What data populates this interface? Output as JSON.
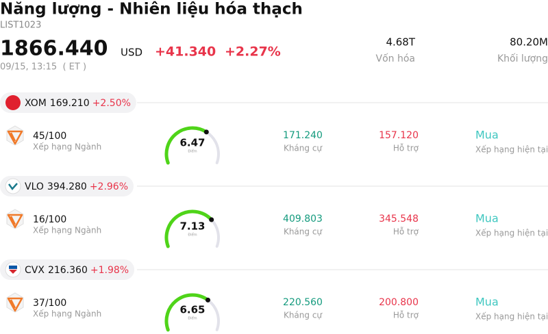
{
  "header": {
    "title": "Năng lượng - Nhiên liệu hóa thạch",
    "code": "LIST1023",
    "price": "1866.440",
    "currency": "USD",
    "change": "+41.340",
    "change_pct": "+2.27%",
    "time": "09/15, 13:15  ( ET )",
    "market_cap": "4.68T",
    "market_cap_label": "Vốn hóa",
    "volume": "80.20M",
    "volume_label": "Khối lượng"
  },
  "stocks": [
    {
      "ticker": "XOM",
      "price": "169.210",
      "change": "+2.50%",
      "rank": "45/100",
      "rank_label": "Xếp hạng Ngành",
      "score": 6.47,
      "score_label": "Điểm",
      "resistance": "171.240",
      "resistance_label": "Kháng cự",
      "support": "157.120",
      "support_label": "Hỗ trợ",
      "rating": "Mua",
      "rating_label": "Xếp hạng hiện tại"
    },
    {
      "ticker": "VLO",
      "price": "394.280",
      "change": "+2.96%",
      "rank": "16/100",
      "rank_label": "Xếp hạng Ngành",
      "score": 7.13,
      "score_label": "Điểm",
      "resistance": "409.803",
      "resistance_label": "Kháng cự",
      "support": "345.548",
      "support_label": "Hỗ trợ",
      "rating": "Mua",
      "rating_label": "Xếp hạng hiện tại"
    },
    {
      "ticker": "CVX",
      "price": "216.360",
      "change": "+1.98%",
      "rank": "37/100",
      "rank_label": "Xếp hạng Ngành",
      "score": 6.65,
      "score_label": "Điểm",
      "resistance": "220.560",
      "resistance_label": "Kháng cự",
      "support": "200.800",
      "support_label": "Hỗ trợ",
      "rating": "Mua",
      "rating_label": "Xếp hạng hiện tại"
    }
  ]
}
